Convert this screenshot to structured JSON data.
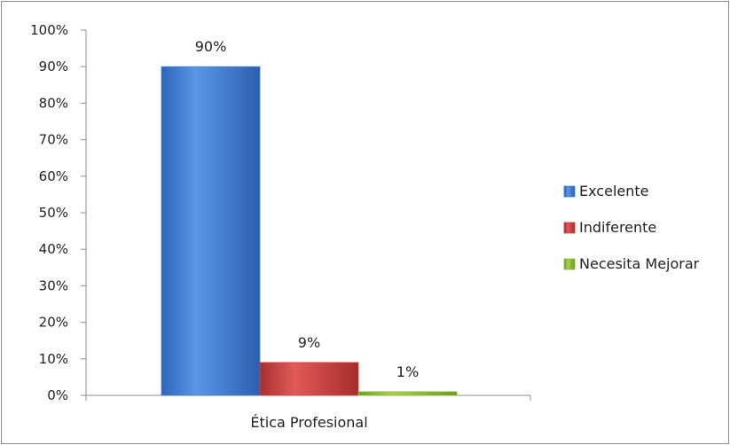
{
  "chart_data": {
    "type": "bar",
    "categories": [
      "Ética Profesional"
    ],
    "series": [
      {
        "name": "Excelente",
        "values": [
          90
        ],
        "color": "#3f7fd6",
        "data_label": "90%"
      },
      {
        "name": "Indiferente",
        "values": [
          9
        ],
        "color": "#cf4040",
        "data_label": "9%"
      },
      {
        "name": "Necesita Mejorar",
        "values": [
          1
        ],
        "color": "#8fbf3a",
        "data_label": "1%"
      }
    ],
    "ylim": [
      0,
      100
    ],
    "y_ticks": [
      0,
      10,
      20,
      30,
      40,
      50,
      60,
      70,
      80,
      90,
      100
    ],
    "y_tick_labels": [
      "0%",
      "10%",
      "20%",
      "30%",
      "40%",
      "50%",
      "60%",
      "70%",
      "80%",
      "90%",
      "100%"
    ],
    "legend_position": "right",
    "grid": false
  }
}
